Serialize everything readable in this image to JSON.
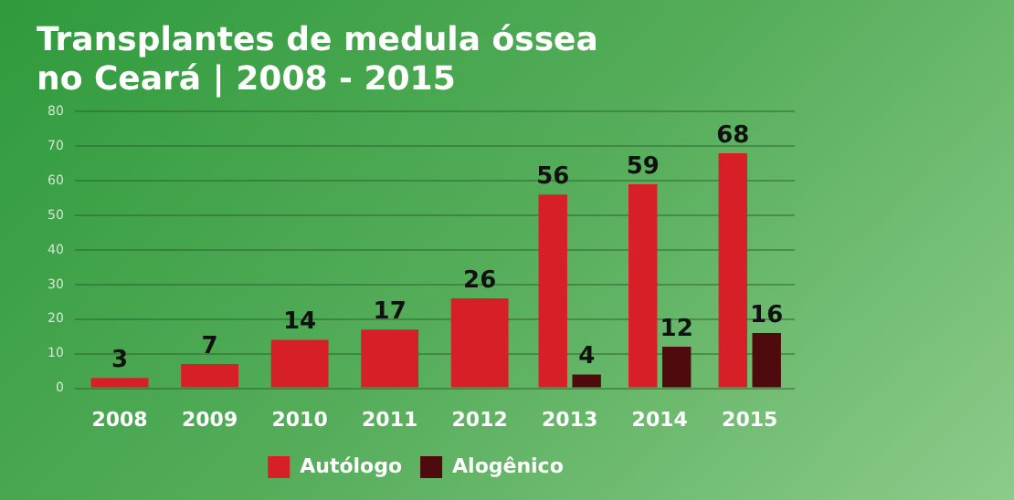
{
  "chart_data": {
    "type": "bar",
    "title": "Transplantes de medula óssea\nno Ceará | 2008 - 2015",
    "categories": [
      "2008",
      "2009",
      "2010",
      "2011",
      "2012",
      "2013",
      "2014",
      "2015"
    ],
    "series": [
      {
        "name": "Autólogo",
        "color": "#d71f27",
        "values": [
          3,
          7,
          14,
          17,
          26,
          56,
          59,
          68
        ]
      },
      {
        "name": "Alogênico",
        "color": "#4e0a0c",
        "values": [
          null,
          null,
          null,
          null,
          null,
          4,
          12,
          16
        ]
      }
    ],
    "ylim": [
      0,
      80
    ],
    "yticks": [
      0,
      10,
      20,
      30,
      40,
      50,
      60,
      70,
      80
    ],
    "grid": "y",
    "legend": "bottom",
    "data_labels": true
  }
}
